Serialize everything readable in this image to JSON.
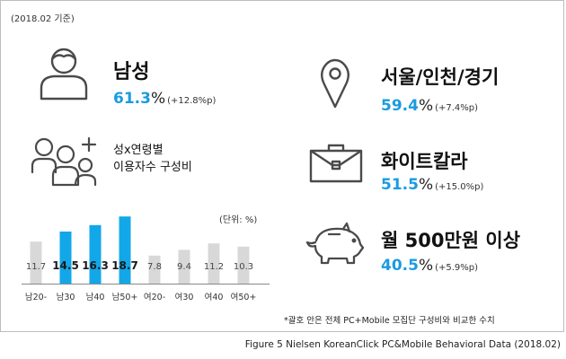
{
  "date_note": "(2018.02 기준)",
  "metrics": [
    {
      "title": "남성",
      "value": "61.3",
      "unit": "%",
      "change": "(+12.8%p)"
    },
    {
      "title": "서울/인천/경기",
      "value": "59.4",
      "unit": "%",
      "change": "(+7.4%p)"
    },
    {
      "title": "화이트칼라",
      "value": "51.5",
      "unit": "%",
      "change": "(+15.0%p)"
    },
    {
      "title": "월 500만원 이상",
      "value": "40.5",
      "unit": "%",
      "change": "(+5.9%p)"
    }
  ],
  "chart_title_line1": "성x연령별",
  "chart_title_line2": "이용자수 구성비",
  "chart_unit": "(단위: %)",
  "footnote": "*괄호 안은 전체 PC+Mobile 모집단 구성비와 비교한 수치",
  "caption": "Figure 5 Nielsen KoreanClick PC&Mobile Behavioral Data (2018.02)",
  "colors": {
    "accent": "#1a9be0",
    "bar_highlight": "#12a7e8",
    "bar_base": "#d8d8d8"
  },
  "icons": [
    "male-user-icon",
    "location-pin-icon",
    "users-add-icon",
    "briefcase-icon",
    "piggy-bank-icon"
  ],
  "chart_data": {
    "type": "bar",
    "categories": [
      "남20-",
      "남30",
      "남40",
      "남50+",
      "여20-",
      "여30",
      "여40",
      "여50+"
    ],
    "values": [
      11.7,
      14.5,
      16.3,
      18.7,
      7.8,
      9.4,
      11.2,
      10.3
    ],
    "highlighted": [
      "남30",
      "남40",
      "남50+"
    ],
    "ylim": [
      0,
      20
    ],
    "data_labels": true,
    "grid": false
  }
}
